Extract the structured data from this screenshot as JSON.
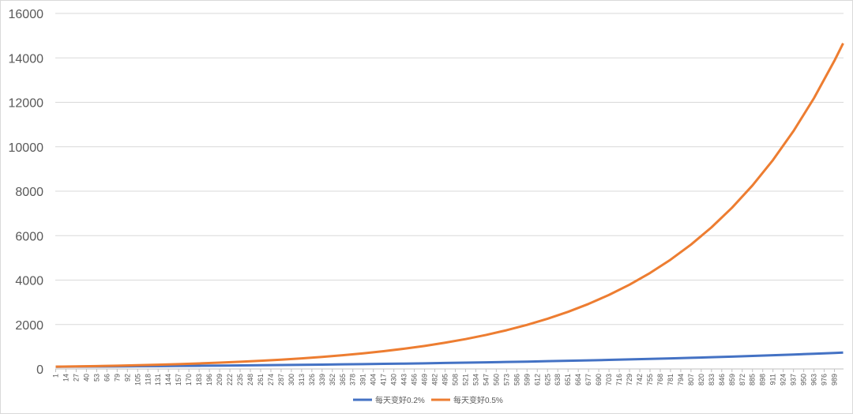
{
  "chart_data": {
    "type": "line",
    "x": [
      1,
      27,
      53,
      79,
      105,
      131,
      157,
      183,
      209,
      235,
      261,
      287,
      313,
      339,
      365,
      391,
      417,
      443,
      469,
      495,
      521,
      547,
      573,
      599,
      625,
      651,
      677,
      703,
      729,
      755,
      781,
      807,
      833,
      859,
      885,
      911,
      937,
      963,
      989,
      1000
    ],
    "series": [
      {
        "name": "每天变好0.2%",
        "color": "#4472c4",
        "values": [
          100,
          106,
          111,
          117,
          123,
          130,
          137,
          144,
          152,
          160,
          168,
          177,
          187,
          197,
          207,
          218,
          230,
          242,
          255,
          269,
          283,
          298,
          314,
          331,
          349,
          367,
          387,
          407,
          429,
          452,
          476,
          501,
          528,
          556,
          586,
          617,
          650,
          685,
          721,
          737
        ]
      },
      {
        "name": "每天变好0.5%",
        "color": "#ed7d31",
        "values": [
          101,
          114,
          130,
          148,
          169,
          192,
          219,
          249,
          284,
          323,
          368,
          418,
          476,
          542,
          617,
          703,
          800,
          911,
          1037,
          1181,
          1344,
          1531,
          1743,
          1984,
          2259,
          2571,
          2927,
          3333,
          3794,
          4319,
          4917,
          5598,
          6373,
          7255,
          8260,
          9403,
          10705,
          12187,
          13875,
          14657
        ]
      }
    ],
    "xlim": [
      0.5,
      1000.5
    ],
    "xticks": [
      1,
      14,
      27,
      40,
      53,
      66,
      79,
      92,
      105,
      118,
      131,
      144,
      157,
      170,
      183,
      196,
      209,
      222,
      235,
      248,
      261,
      274,
      287,
      300,
      313,
      326,
      339,
      352,
      365,
      378,
      391,
      404,
      417,
      430,
      443,
      456,
      469,
      482,
      495,
      508,
      521,
      534,
      547,
      560,
      573,
      586,
      599,
      612,
      625,
      638,
      651,
      664,
      677,
      690,
      703,
      716,
      729,
      742,
      755,
      768,
      781,
      794,
      807,
      820,
      833,
      846,
      859,
      872,
      885,
      898,
      911,
      924,
      937,
      950,
      963,
      976,
      989
    ],
    "ylim": [
      0,
      16000
    ],
    "yticks": [
      0,
      2000,
      4000,
      6000,
      8000,
      10000,
      12000,
      14000,
      16000
    ],
    "grid": true,
    "legend": "bottom"
  }
}
